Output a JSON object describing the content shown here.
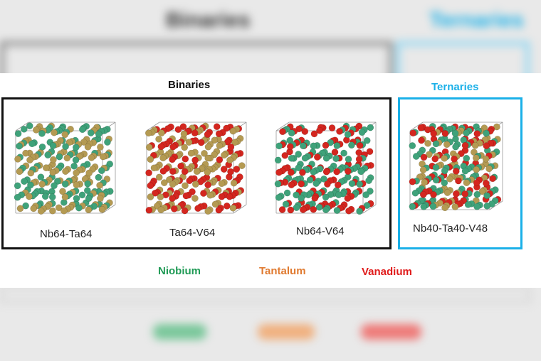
{
  "groups": {
    "binaries_title": "Binaries",
    "ternaries_title": "Ternaries"
  },
  "structures": [
    {
      "label": "Nb64-Ta64",
      "elements": [
        "niobium",
        "tantalum"
      ]
    },
    {
      "label": "Ta64-V64",
      "elements": [
        "tantalum",
        "vanadium"
      ]
    },
    {
      "label": "Nb64-V64",
      "elements": [
        "niobium",
        "vanadium"
      ]
    },
    {
      "label": "Nb40-Ta40-V48",
      "elements": [
        "niobium",
        "tantalum",
        "vanadium"
      ]
    }
  ],
  "legend": [
    {
      "key": "niobium",
      "name": "Niobium",
      "color": "#1f9a55"
    },
    {
      "key": "tantalum",
      "name": "Tantalum",
      "color": "#e07a30"
    },
    {
      "key": "vanadium",
      "name": "Vanadium",
      "color": "#e01b1b"
    }
  ],
  "colors": {
    "binaries_border": "#111111",
    "ternaries_border": "#1ab0e8",
    "ternaries_title": "#1ab0e8",
    "atom_niobium": "#3fa27a",
    "atom_tantalum": "#b49a52",
    "atom_vanadium": "#d4261f"
  }
}
